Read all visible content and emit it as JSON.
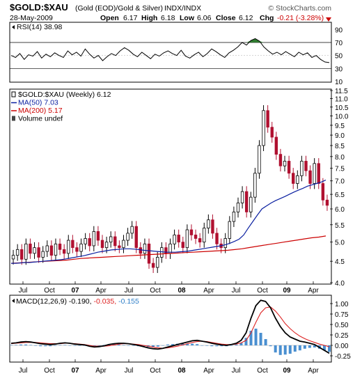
{
  "header": {
    "symbol": "$GOLD:$XAU",
    "description": "(Gold (EOD)/Gold & Silver)",
    "exchange": "INDX/INDX",
    "date": "28-May-2009",
    "watermark": "© StockCharts.com",
    "open_label": "Open",
    "open_value": "6.17",
    "high_label": "High",
    "high_value": "6.18",
    "low_label": "Low",
    "low_value": "6.06",
    "close_label": "Close",
    "close_value": "6.12",
    "chg_label": "Chg",
    "chg_value": "-0.21 (-3.28%)"
  },
  "chart_data": [
    {
      "id": "rsi",
      "type": "line",
      "legend": "RSI(14) 38.98",
      "ylim": [
        10,
        100
      ],
      "ticks": [
        90,
        70,
        50,
        30,
        10
      ],
      "reference_lines": [
        70,
        30
      ],
      "color": "#000000",
      "overbought_fill": "#2f7a2f",
      "values": [
        50,
        47,
        53,
        44,
        51,
        49,
        56,
        46,
        52,
        48,
        54,
        50,
        47,
        57,
        51,
        55,
        49,
        60,
        52,
        46,
        50,
        42,
        48,
        53,
        50,
        57,
        62,
        58,
        52,
        48,
        55,
        50,
        45,
        52,
        49,
        54,
        57,
        53,
        50,
        58,
        49,
        46,
        51,
        55,
        48,
        53,
        60,
        56,
        51,
        47,
        54,
        58,
        63,
        70,
        66,
        73,
        76,
        72,
        63,
        57,
        52,
        55,
        51,
        56,
        52,
        48,
        55,
        51,
        54,
        47,
        50,
        44,
        40,
        39
      ]
    },
    {
      "id": "price",
      "type": "candlestick",
      "legend": [
        {
          "label": "$GOLD:$XAU (Weekly) 6.12",
          "color": "#000000"
        },
        {
          "label": "MA(50) 7.03",
          "color": "#0a1fa0"
        },
        {
          "label": "MA(200) 5.17",
          "color": "#cc0000"
        },
        {
          "label": "Volume undef",
          "color": "#000000"
        }
      ],
      "ylim": [
        4.0,
        11.5
      ],
      "scale": "log",
      "y_ticks": [
        11.5,
        11.0,
        10.5,
        10.0,
        9.5,
        9.0,
        8.5,
        8.0,
        7.5,
        7.0,
        6.5,
        6.0,
        5.5,
        5.0,
        4.5,
        4.0
      ],
      "x_labels": [
        {
          "label": "Jul",
          "bold": false
        },
        {
          "label": "Oct",
          "bold": false
        },
        {
          "label": "07",
          "bold": true
        },
        {
          "label": "Apr",
          "bold": false
        },
        {
          "label": "Jul",
          "bold": false
        },
        {
          "label": "Oct",
          "bold": false
        },
        {
          "label": "08",
          "bold": true
        },
        {
          "label": "Apr",
          "bold": false
        },
        {
          "label": "Jul",
          "bold": false
        },
        {
          "label": "Oct",
          "bold": false
        },
        {
          "label": "09",
          "bold": true
        },
        {
          "label": "Apr",
          "bold": false
        }
      ],
      "close": [
        4.65,
        4.8,
        4.55,
        4.95,
        4.7,
        4.85,
        4.6,
        4.75,
        4.9,
        4.65,
        4.95,
        4.8,
        4.7,
        5.05,
        4.85,
        4.75,
        4.95,
        5.1,
        4.9,
        5.3,
        5.05,
        4.85,
        5.0,
        5.15,
        4.9,
        4.85,
        5.05,
        5.25,
        5.45,
        4.85,
        4.7,
        4.95,
        4.45,
        4.35,
        4.6,
        4.85,
        4.7,
        4.95,
        5.2,
        5.0,
        4.85,
        5.35,
        5.2,
        5.1,
        5.0,
        5.4,
        5.65,
        5.25,
        4.95,
        4.85,
        5.1,
        5.6,
        5.9,
        6.2,
        6.6,
        5.9,
        6.4,
        7.3,
        8.5,
        10.3,
        9.4,
        8.9,
        8.1,
        7.6,
        7.8,
        7.3,
        6.9,
        7.2,
        7.8,
        7.4,
        6.9,
        7.7,
        6.9,
        6.3,
        6.12
      ],
      "ma50": [
        4.45,
        4.45,
        4.46,
        4.47,
        4.47,
        4.48,
        4.49,
        4.5,
        4.51,
        4.52,
        4.53,
        4.54,
        4.56,
        4.58,
        4.6,
        4.62,
        4.64,
        4.67,
        4.7,
        4.73,
        4.75,
        4.77,
        4.79,
        4.8,
        4.81,
        4.82,
        4.82,
        4.81,
        4.8,
        4.78,
        4.77,
        4.76,
        4.75,
        4.74,
        4.73,
        4.73,
        4.73,
        4.74,
        4.75,
        4.76,
        4.78,
        4.8,
        4.82,
        4.84,
        4.86,
        4.88,
        4.9,
        4.93,
        4.97,
        5.02,
        5.08,
        5.2,
        5.4,
        5.6,
        5.8,
        6.0,
        6.1,
        6.2,
        6.28,
        6.35,
        6.42,
        6.5,
        6.58,
        6.65,
        6.72,
        6.8,
        6.85,
        6.9,
        6.95,
        7.03
      ],
      "ma200": [
        4.45,
        4.46,
        4.47,
        4.48,
        4.49,
        4.5,
        4.51,
        4.52,
        4.53,
        4.55,
        4.57,
        4.58,
        4.59,
        4.6,
        4.61,
        4.62,
        4.63,
        4.64,
        4.65,
        4.66,
        4.67,
        4.68,
        4.69,
        4.7,
        4.71,
        4.72,
        4.73,
        4.74,
        4.75,
        4.76,
        4.77,
        4.78,
        4.8,
        4.82,
        4.85,
        4.88,
        4.91,
        4.94,
        4.97,
        5.0,
        5.03,
        5.06,
        5.09,
        5.12,
        5.14,
        5.17
      ]
    },
    {
      "id": "macd",
      "type": "line",
      "legend_prefix": "MACD(12,26,9)",
      "macd_value": "-0.190",
      "signal_value": "-0.035",
      "hist_value": "-0.155",
      "ylim": [
        -0.35,
        1.15
      ],
      "y_ticks": [
        "1.00",
        "0.75",
        "0.50",
        "0.25",
        "0.00",
        "-0.25"
      ],
      "macd": [
        0.05,
        0.06,
        0.08,
        0.09,
        0.08,
        0.06,
        0.04,
        0.03,
        0.02,
        0.03,
        0.05,
        0.06,
        0.05,
        0.03,
        0.02,
        0.01,
        -0.02,
        -0.04,
        -0.03,
        -0.01,
        0.02,
        0.04,
        0.05,
        0.05,
        0.04,
        0.02,
        0.0,
        -0.03,
        -0.06,
        -0.08,
        -0.09,
        -0.07,
        -0.04,
        -0.01,
        0.02,
        0.05,
        0.08,
        0.11,
        0.12,
        0.1,
        0.08,
        0.05,
        0.03,
        0.01,
        0.0,
        0.02,
        0.05,
        0.12,
        0.3,
        0.65,
        0.95,
        1.08,
        1.05,
        0.9,
        0.65,
        0.45,
        0.3,
        0.2,
        0.15,
        0.1,
        0.08,
        0.05,
        0.02,
        -0.05,
        -0.12,
        -0.19
      ],
      "signal": [
        0.04,
        0.05,
        0.06,
        0.07,
        0.07,
        0.07,
        0.06,
        0.05,
        0.04,
        0.04,
        0.04,
        0.05,
        0.05,
        0.04,
        0.03,
        0.02,
        0.0,
        -0.02,
        -0.02,
        -0.02,
        -0.01,
        0.01,
        0.03,
        0.04,
        0.04,
        0.03,
        0.02,
        0.0,
        -0.02,
        -0.04,
        -0.06,
        -0.07,
        -0.06,
        -0.04,
        -0.02,
        0.01,
        0.04,
        0.07,
        0.09,
        0.1,
        0.09,
        0.07,
        0.05,
        0.03,
        0.02,
        0.02,
        0.03,
        0.06,
        0.12,
        0.3,
        0.55,
        0.78,
        0.9,
        0.92,
        0.82,
        0.68,
        0.52,
        0.4,
        0.3,
        0.22,
        0.16,
        0.11,
        0.07,
        0.03,
        0.0,
        -0.035
      ]
    }
  ]
}
